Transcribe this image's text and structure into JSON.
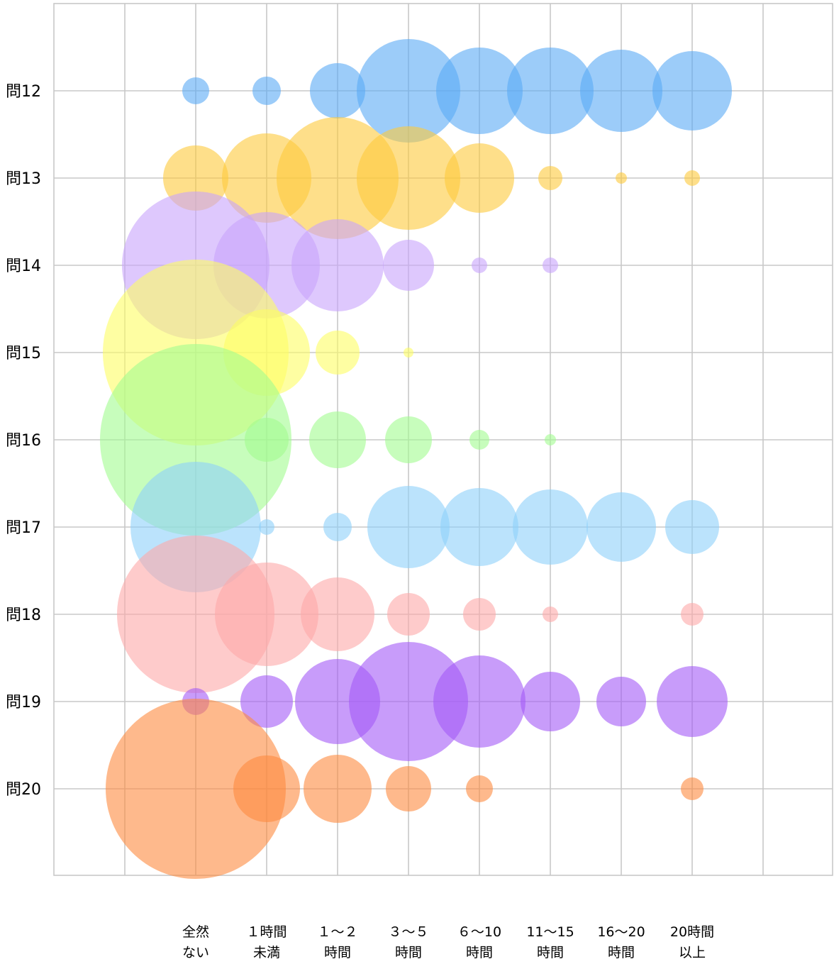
{
  "chart_data": {
    "type": "bubble",
    "x_categories": [
      {
        "line1": "全然",
        "line2": "ない"
      },
      {
        "line1": "１時間",
        "line2": "未満"
      },
      {
        "line1": "１～２",
        "line2": "時間"
      },
      {
        "line1": "３～５",
        "line2": "時間"
      },
      {
        "line1": "６～10",
        "line2": "時間"
      },
      {
        "line1": "11～15",
        "line2": "時間"
      },
      {
        "line1": "16～20",
        "line2": "時間"
      },
      {
        "line1": "20時間",
        "line2": "以上"
      }
    ],
    "series": [
      {
        "name": "問12",
        "color": "#5aaaf5",
        "sizes": [
          19,
          20,
          39,
          73,
          61,
          61,
          58,
          56
        ]
      },
      {
        "name": "問13",
        "color": "#fdc93c",
        "sizes": [
          46,
          63,
          86,
          73,
          49,
          17,
          8,
          11
        ]
      },
      {
        "name": "問14",
        "color": "#c8a4fb",
        "sizes": [
          104,
          75,
          65,
          36,
          11,
          11,
          0,
          0
        ]
      },
      {
        "name": "問15",
        "color": "#fdfd64",
        "sizes": [
          131,
          61,
          31,
          7,
          0,
          0,
          0,
          0
        ]
      },
      {
        "name": "問16",
        "color": "#a2fb90",
        "sizes": [
          135,
          31,
          40,
          33,
          14,
          8,
          0,
          0
        ]
      },
      {
        "name": "問17",
        "color": "#8ed1fa",
        "sizes": [
          92,
          11,
          20,
          58,
          55,
          53,
          49,
          38
        ]
      },
      {
        "name": "問18",
        "color": "#fea9a9",
        "sizes": [
          111,
          73,
          52,
          30,
          23,
          11,
          0,
          16
        ]
      },
      {
        "name": "問19",
        "color": "#a45af6",
        "sizes": [
          19,
          37,
          60,
          84,
          65,
          42,
          35,
          50
        ]
      },
      {
        "name": "問20",
        "color": "#fd8a40",
        "sizes": [
          127,
          47,
          48,
          32,
          19,
          0,
          0,
          16
        ]
      }
    ]
  }
}
